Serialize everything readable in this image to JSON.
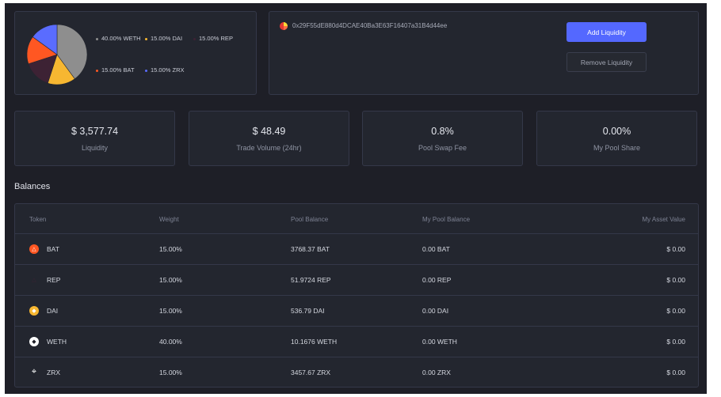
{
  "composition": {
    "legend": [
      {
        "label": "40.00% WETH",
        "token": "WETH",
        "percent": 40,
        "color": "#8e8e8e"
      },
      {
        "label": "15.00% DAI",
        "token": "DAI",
        "percent": 15,
        "color": "#f7b731"
      },
      {
        "label": "15.00% REP",
        "token": "REP",
        "percent": 15,
        "color": "#3d2234"
      },
      {
        "label": "15.00% BAT",
        "token": "BAT",
        "percent": 15,
        "color": "#ff5722"
      },
      {
        "label": "15.00% ZRX",
        "token": "ZRX",
        "percent": 15,
        "color": "#5a6cff"
      }
    ]
  },
  "pool": {
    "address": "0x29F55dE880d4DCAE40Ba3E63F16407a31B4d44ee",
    "add_liquidity": "Add Liquidity",
    "remove_liquidity": "Remove Liquidity",
    "accent": "#5468ff"
  },
  "stats": [
    {
      "value": "$ 3,577.74",
      "label": "Liquidity"
    },
    {
      "value": "$ 48.49",
      "label": "Trade Volume (24hr)"
    },
    {
      "value": "0.8%",
      "label": "Pool Swap Fee"
    },
    {
      "value": "0.00%",
      "label": "My Pool Share"
    }
  ],
  "balances": {
    "title": "Balances",
    "headers": [
      "Token",
      "Weight",
      "Pool Balance",
      "My Pool Balance",
      "My Asset Value"
    ],
    "rows": [
      {
        "token": "BAT",
        "icon": "bat-icon",
        "weight": "15.00%",
        "pool_balance": "3768.37 BAT",
        "my_balance": "0.00 BAT",
        "value": "$ 0.00"
      },
      {
        "token": "REP",
        "icon": "rep-icon",
        "weight": "15.00%",
        "pool_balance": "51.9724 REP",
        "my_balance": "0.00 REP",
        "value": "$ 0.00"
      },
      {
        "token": "DAI",
        "icon": "dai-icon",
        "weight": "15.00%",
        "pool_balance": "536.79 DAI",
        "my_balance": "0.00 DAI",
        "value": "$ 0.00"
      },
      {
        "token": "WETH",
        "icon": "weth-icon",
        "weight": "40.00%",
        "pool_balance": "10.1676 WETH",
        "my_balance": "0.00 WETH",
        "value": "$ 0.00"
      },
      {
        "token": "ZRX",
        "icon": "zrx-icon",
        "weight": "15.00%",
        "pool_balance": "3457.67 ZRX",
        "my_balance": "0.00 ZRX",
        "value": "$ 0.00"
      }
    ]
  }
}
